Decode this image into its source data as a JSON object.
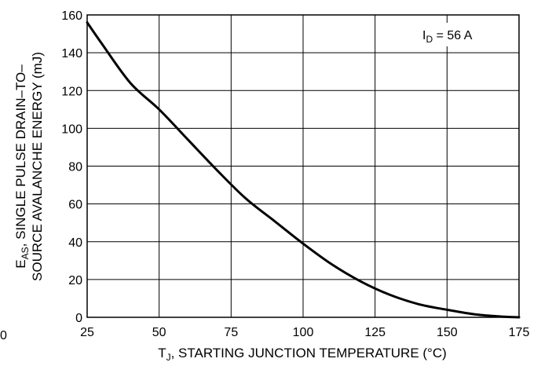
{
  "chart_data": {
    "type": "line",
    "xlabel_main": "T",
    "xlabel_sub": "J",
    "xlabel_rest": ", STARTING JUNCTION TEMPERATURE (°C)",
    "ylabel_line1_main": "E",
    "ylabel_line1_sub": "AS",
    "ylabel_line1_rest": ", SINGLE PULSE DRAIN–TO–",
    "ylabel_line2": "SOURCE AVALANCHE ENERGY (mJ)",
    "annotation_main": "I",
    "annotation_sub": "D",
    "annotation_rest": " = 56 A",
    "stray_label": "0",
    "xlim": [
      25,
      175
    ],
    "ylim": [
      0,
      160
    ],
    "x_ticks": [
      25,
      50,
      75,
      100,
      125,
      150,
      175
    ],
    "y_ticks": [
      0,
      20,
      40,
      60,
      80,
      100,
      120,
      140,
      160
    ],
    "grid": true,
    "series": [
      {
        "x": [
          25,
          30,
          40,
          50,
          60,
          70,
          80,
          90,
          100,
          110,
          120,
          130,
          140,
          150,
          160,
          170,
          175
        ],
        "values": [
          156,
          145,
          124,
          110,
          94,
          78,
          63,
          51,
          39,
          28,
          19,
          12,
          7,
          4,
          1.5,
          0.3,
          0
        ]
      }
    ]
  }
}
